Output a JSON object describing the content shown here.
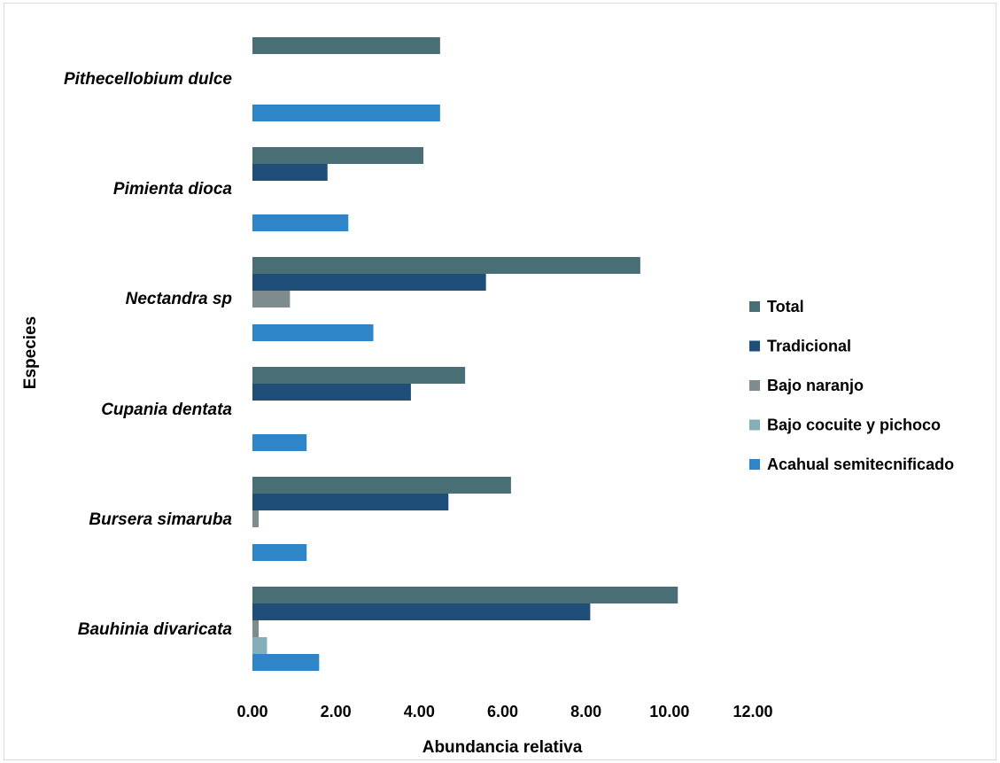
{
  "chart_data": {
    "type": "bar",
    "orientation": "horizontal",
    "ylabel": "Especies",
    "xlabel": "Abundancia  relativa",
    "xlim": [
      0,
      12
    ],
    "xticks": [
      "0.00",
      "2.00",
      "4.00",
      "6.00",
      "8.00",
      "10.00",
      "12.00"
    ],
    "grid": false,
    "legend_position": "right",
    "categories": [
      "Pithecellobium dulce",
      "Pimienta dioca",
      "Nectandra sp",
      "Cupania dentata",
      "Bursera simaruba",
      "Bauhinia divaricata"
    ],
    "series": [
      {
        "name": "Total",
        "color": "#4a6e76",
        "values": [
          4.5,
          4.1,
          9.3,
          5.1,
          6.2,
          10.2
        ]
      },
      {
        "name": "Tradicional",
        "color": "#1f4e79",
        "values": [
          0,
          1.8,
          5.6,
          3.8,
          4.7,
          8.1
        ]
      },
      {
        "name": "Bajo naranjo",
        "color": "#7f8c8d",
        "values": [
          0,
          0,
          0.9,
          0,
          0.15,
          0.15
        ]
      },
      {
        "name": "Bajo cocuite y pichoco",
        "color": "#85aebb",
        "values": [
          0,
          0,
          0,
          0,
          0,
          0.35
        ]
      },
      {
        "name": "Acahual semitecnificado",
        "color": "#2e86c8",
        "values": [
          4.5,
          2.3,
          2.9,
          1.3,
          1.3,
          1.6
        ]
      }
    ]
  }
}
